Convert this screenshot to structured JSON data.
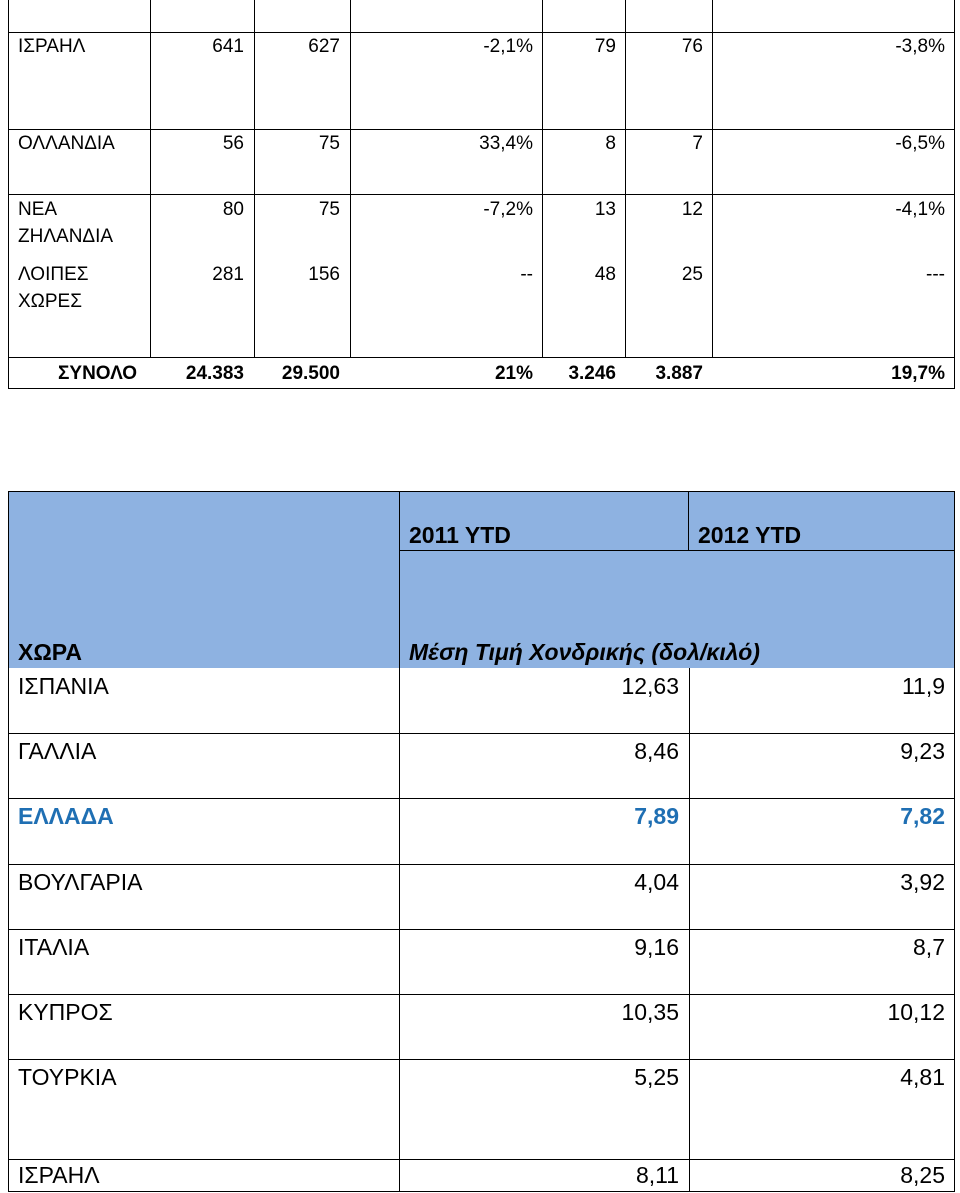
{
  "top_table": {
    "rows": [
      {
        "country": "ΙΣΡΑΗΛ",
        "v2011": "641",
        "v2012": "627",
        "pct1": "-2,1%",
        "q2011": "79",
        "q2012": "76",
        "pct2": "-3,8%"
      },
      {
        "country": "ΟΛΛΑΝΔΙΑ",
        "v2011": "56",
        "v2012": "75",
        "pct1": "33,4%",
        "q2011": "8",
        "q2012": "7",
        "pct2": "-6,5%"
      },
      {
        "country_l1": "ΝΕΑ",
        "country_l2": "ΖΗΛΑΝΔΙΑ",
        "v2011": "80",
        "v2012": "75",
        "pct1": "-7,2%",
        "q2011": "13",
        "q2012": "12",
        "pct2": "-4,1%"
      },
      {
        "country_l1": "ΛΟΙΠΕΣ",
        "country_l2": "ΧΩΡΕΣ",
        "v2011": "281",
        "v2012": "156",
        "pct1": "--",
        "q2011": "48",
        "q2012": "25",
        "pct2": "---"
      }
    ],
    "total": {
      "label": "ΣΥΝΟΛΟ",
      "v2011": "24.383",
      "v2012": "29.500",
      "pct1": "21%",
      "q2011": "3.246",
      "q2012": "3.887",
      "pct2": "19,7%"
    }
  },
  "bottom_table": {
    "header": {
      "col_2011": "2011 YTD",
      "col_2012": "2012 YTD",
      "country_label": "ΧΩΡΑ",
      "metric_label": "Μέση Τιμή Χονδρικής (δολ/κιλό)"
    },
    "rows": [
      {
        "country": "ΙΣΠΑΝΙΑ",
        "y2011": "12,63",
        "y2012": "11,9"
      },
      {
        "country": "ΓΑΛΛΙΑ",
        "y2011": "8,46",
        "y2012": "9,23"
      },
      {
        "country": "ΕΛΛΑΔΑ",
        "y2011": "7,89",
        "y2012": "7,82"
      },
      {
        "country": "ΒΟΥΛΓΑΡΙΑ",
        "y2011": "4,04",
        "y2012": "3,92"
      },
      {
        "country": "ΙΤΑΛΙΑ",
        "y2011": "9,16",
        "y2012": "8,7"
      },
      {
        "country": "ΚΥΠΡΟΣ",
        "y2011": "10,35",
        "y2012": "10,12"
      },
      {
        "country": "ΤΟΥΡΚΙΑ",
        "y2011": "5,25",
        "y2012": "4,81"
      },
      {
        "country": "ΙΣΡΑΗΛ",
        "y2011": "8,11",
        "y2012": "8,25"
      }
    ],
    "highlight_color": "#1f6fb3",
    "header_color": "#8eb2e1"
  }
}
